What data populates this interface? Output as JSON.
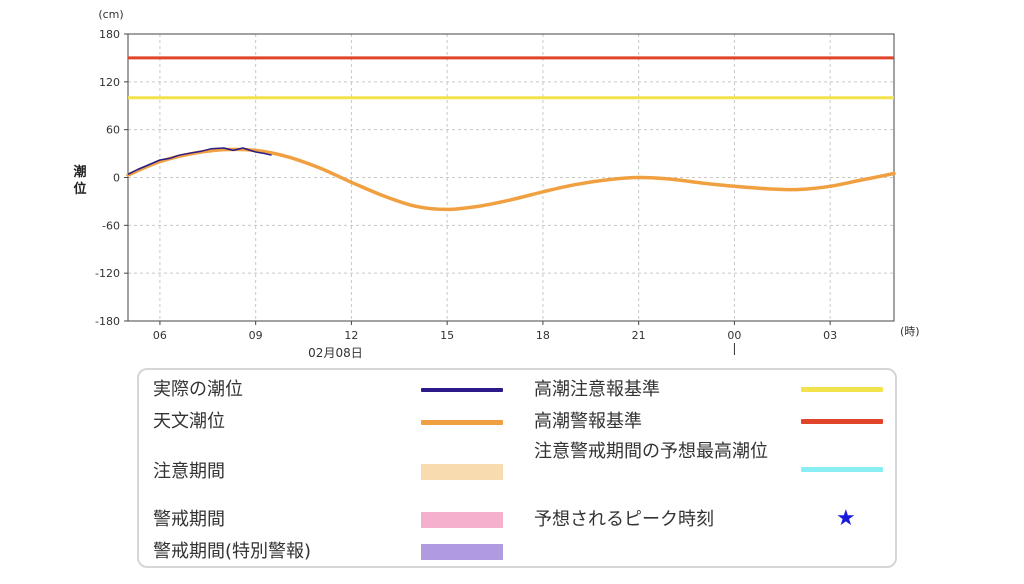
{
  "chart_data": {
    "type": "line",
    "unit_label": "(cm)",
    "ylabel_lines": [
      "潮",
      "位"
    ],
    "x_unit_label": "(時)",
    "date_label": "02月08日",
    "ylim": [
      -180,
      180
    ],
    "yticks": [
      180,
      120,
      60,
      0,
      -60,
      -120,
      -180
    ],
    "xlim": [
      5,
      29
    ],
    "xticks": [
      {
        "h": 6,
        "label": "06"
      },
      {
        "h": 9,
        "label": "09"
      },
      {
        "h": 12,
        "label": "12"
      },
      {
        "h": 15,
        "label": "15"
      },
      {
        "h": 18,
        "label": "18"
      },
      {
        "h": 21,
        "label": "21"
      },
      {
        "h": 24,
        "label": "00"
      },
      {
        "h": 27,
        "label": "03"
      }
    ],
    "grid": true,
    "thresholds": [
      {
        "name": "高潮警報基準",
        "value": 150,
        "color": "#e0452c"
      },
      {
        "name": "高潮注意報基準",
        "value": 100,
        "color": "#f2e24b"
      }
    ],
    "series": [
      {
        "name": "天文潮位",
        "color": "#f0a040",
        "x": [
          5,
          6,
          7,
          8,
          9,
          10,
          11,
          12,
          13,
          14,
          15,
          16,
          17,
          18,
          19,
          20,
          21,
          22,
          23,
          24,
          25,
          26,
          27,
          28,
          29
        ],
        "values": [
          3,
          20,
          30,
          35,
          34,
          26,
          12,
          -6,
          -23,
          -36,
          -40,
          -36,
          -28,
          -18,
          -9,
          -3,
          0,
          -2,
          -7,
          -11,
          -14,
          -15,
          -11,
          -3,
          5
        ]
      },
      {
        "name": "実際の潮位",
        "color": "#2a1a8a",
        "x": [
          5,
          5.3,
          5.6,
          6,
          6.3,
          6.6,
          7,
          7.3,
          7.6,
          8,
          8.3,
          8.6,
          9,
          9.3,
          9.5
        ],
        "values": [
          4,
          10,
          15,
          22,
          24,
          28,
          31,
          33,
          36,
          37,
          34,
          37,
          32,
          30,
          28
        ]
      }
    ],
    "legend": {
      "left": [
        {
          "label": "実際の潮位",
          "kind": "line",
          "color": "#2a1a8a"
        },
        {
          "label": "天文潮位",
          "kind": "line",
          "color": "#f0a040"
        },
        {
          "label": "注意期間",
          "kind": "fill",
          "color": "#f8dcb0"
        },
        {
          "label": "警戒期間",
          "kind": "fill",
          "color": "#f4b0cc"
        },
        {
          "label": "警戒期間(特別警報)",
          "kind": "fill",
          "color": "#b09ae0"
        }
      ],
      "right": [
        {
          "label": "高潮注意報基準",
          "kind": "line",
          "color": "#f2e24b"
        },
        {
          "label": "高潮警報基準",
          "kind": "line",
          "color": "#e0452c"
        },
        {
          "label": "注意警戒期間の予想最高潮位",
          "kind": "line",
          "color": "#88eef4"
        },
        {
          "label": "予想されるピーク時刻",
          "kind": "star",
          "color": "#1a1adc"
        }
      ]
    }
  }
}
